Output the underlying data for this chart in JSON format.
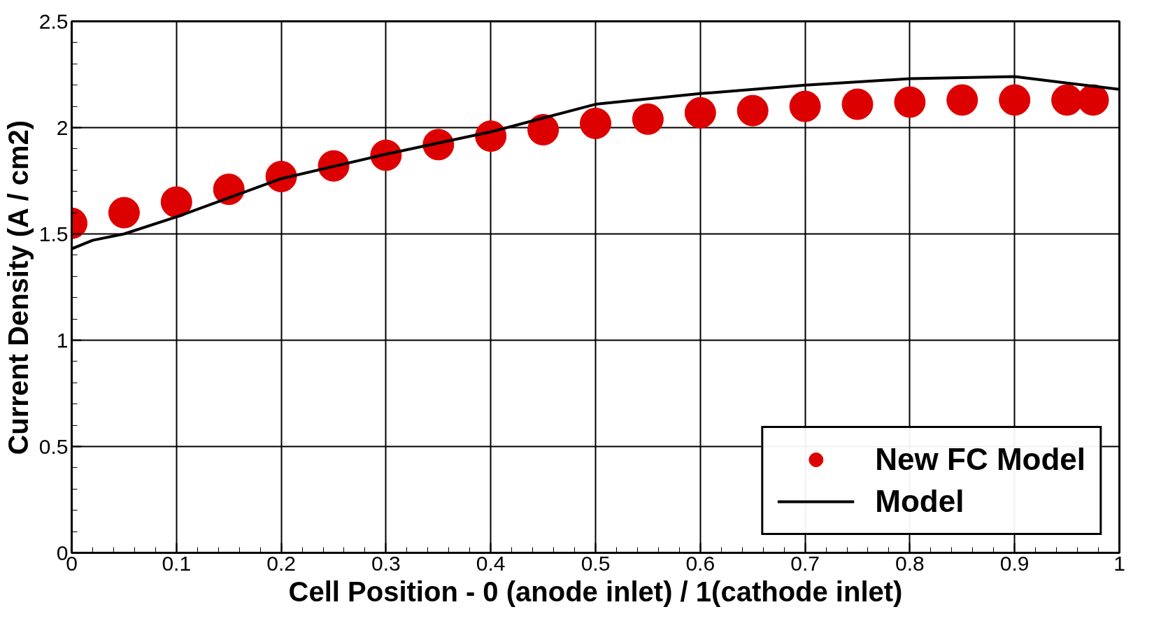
{
  "chart_data": {
    "type": "scatter",
    "xlabel": "Cell Position - 0 (anode inlet) / 1(cathode inlet)",
    "ylabel": "Current Density (A / cm2)",
    "xlim": [
      0,
      1
    ],
    "ylim": [
      0,
      2.5
    ],
    "xticks": [
      0,
      0.1,
      0.2,
      0.3,
      0.4,
      0.5,
      0.6,
      0.7,
      0.8,
      0.9,
      1
    ],
    "yticks": [
      0,
      0.5,
      1,
      1.5,
      2,
      2.5
    ],
    "grid": true,
    "legend": "bottom right",
    "series": [
      {
        "name": "New FC Model",
        "marker": "circle",
        "color": "#dd0000",
        "x": [
          0,
          0.05,
          0.1,
          0.15,
          0.2,
          0.25,
          0.3,
          0.35,
          0.4,
          0.45,
          0.5,
          0.55,
          0.6,
          0.65,
          0.7,
          0.75,
          0.8,
          0.85,
          0.9,
          0.95,
          0.975
        ],
        "values": [
          1.55,
          1.6,
          1.65,
          1.71,
          1.77,
          1.82,
          1.87,
          1.92,
          1.96,
          1.99,
          2.02,
          2.04,
          2.07,
          2.08,
          2.1,
          2.11,
          2.12,
          2.13,
          2.13,
          2.13,
          2.13
        ]
      },
      {
        "name": "Model",
        "type": "line",
        "color": "#000000",
        "x": [
          0,
          0.02,
          0.05,
          0.1,
          0.2,
          0.3,
          0.4,
          0.5,
          0.6,
          0.7,
          0.8,
          0.9,
          0.95,
          1
        ],
        "values": [
          1.43,
          1.47,
          1.5,
          1.58,
          1.76,
          1.875,
          1.98,
          2.11,
          2.16,
          2.2,
          2.23,
          2.24,
          2.21,
          2.18
        ]
      }
    ]
  }
}
